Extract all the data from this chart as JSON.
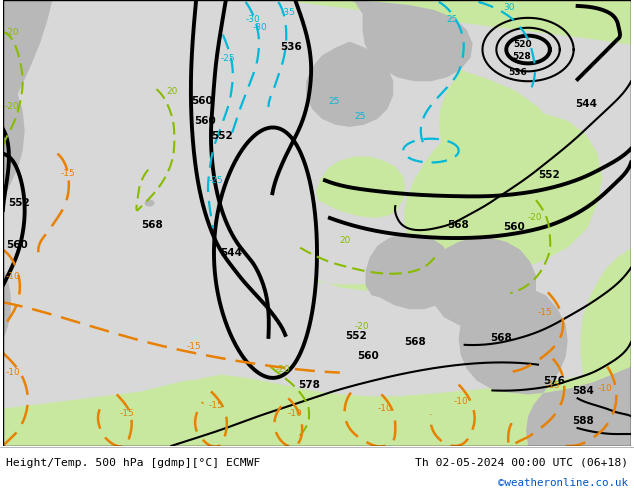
{
  "title_left": "Height/Temp. 500 hPa [gdmp][°C] ECMWF",
  "title_right": "Th 02-05-2024 00:00 UTC (06+18)",
  "credit": "©weatheronline.co.uk",
  "ocean_color": "#d8d8d8",
  "land_green": "#c8e8a0",
  "land_gray": "#b8b8b8",
  "footer_bg": "#ffffff",
  "black_line_color": "#000000",
  "cyan_color": "#00b8d8",
  "orange_color": "#e88000",
  "green_color": "#88bb00",
  "fig_width": 6.34,
  "fig_height": 4.9,
  "dpi": 100
}
